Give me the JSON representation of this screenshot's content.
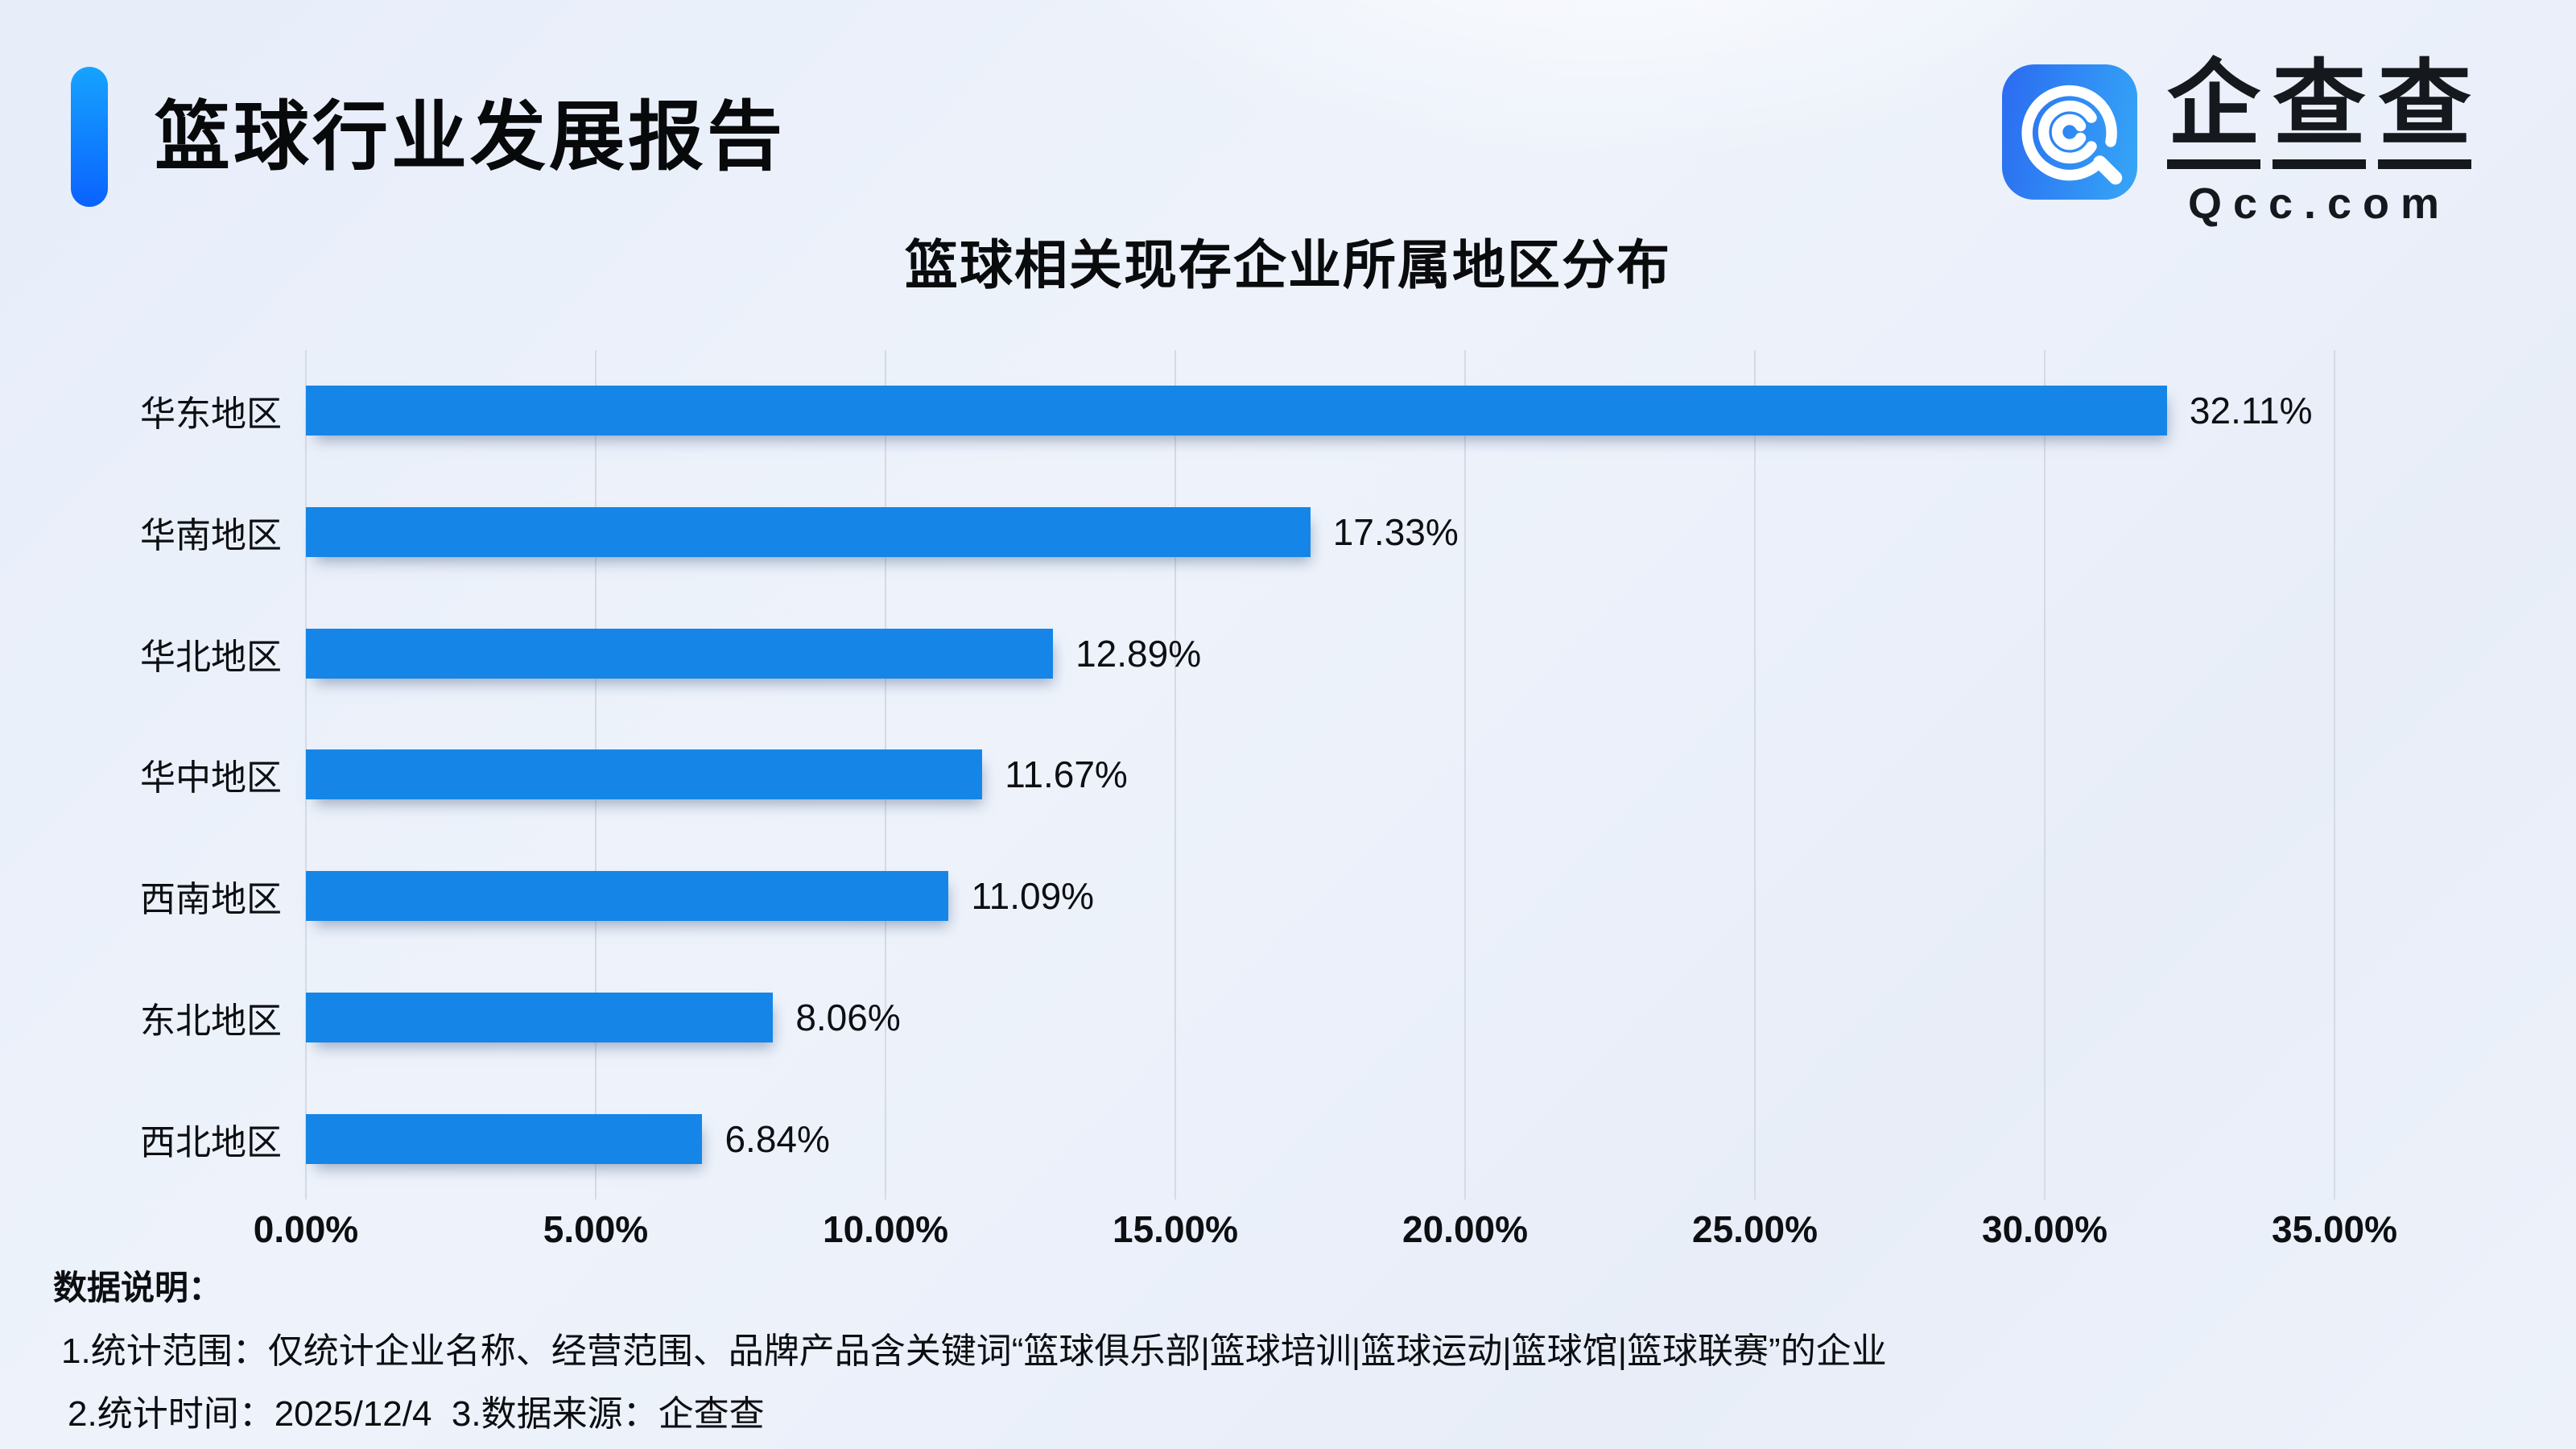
{
  "header": {
    "title": "篮球行业发展报告"
  },
  "logo": {
    "brand": "企查查",
    "brand_chars": [
      "企",
      "查",
      "查"
    ],
    "domain": "Qcc.com",
    "icon": "qcc-magnifier-icon"
  },
  "chart_data": {
    "type": "bar",
    "orientation": "horizontal",
    "title": "篮球相关现存企业所属地区分布",
    "categories": [
      "华东地区",
      "华南地区",
      "华北地区",
      "华中地区",
      "西南地区",
      "东北地区",
      "西北地区"
    ],
    "values": [
      32.11,
      17.33,
      12.89,
      11.67,
      11.09,
      8.06,
      6.84
    ],
    "value_labels": [
      "32.11%",
      "17.33%",
      "12.89%",
      "11.67%",
      "11.09%",
      "8.06%",
      "6.84%"
    ],
    "x_ticks": [
      "0.00%",
      "5.00%",
      "10.00%",
      "15.00%",
      "20.00%",
      "25.00%",
      "30.00%",
      "35.00%"
    ],
    "xlim": [
      0,
      35
    ],
    "x_tick_interval": 5,
    "xlabel": "",
    "ylabel": "",
    "grid": "vertical",
    "legend": "none"
  },
  "footer": {
    "heading": "数据说明：",
    "line1": "1.统计范围：仅统计企业名称、经营范围、品牌产品含关键词“篮球俱乐部|篮球培训|篮球运动|篮球馆|篮球联赛”的企业",
    "line2": "2.统计时间：2025/12/4  3.数据来源：企查查"
  },
  "colors": {
    "bar": "#1586E8",
    "accent_top": "#16A3FE",
    "accent_bottom": "#0A62FE",
    "logo_gradient_from": "#2B6BF1",
    "logo_gradient_to": "#35A7F7",
    "gridline": "#D5DAE4",
    "text": "#0D0F12"
  }
}
